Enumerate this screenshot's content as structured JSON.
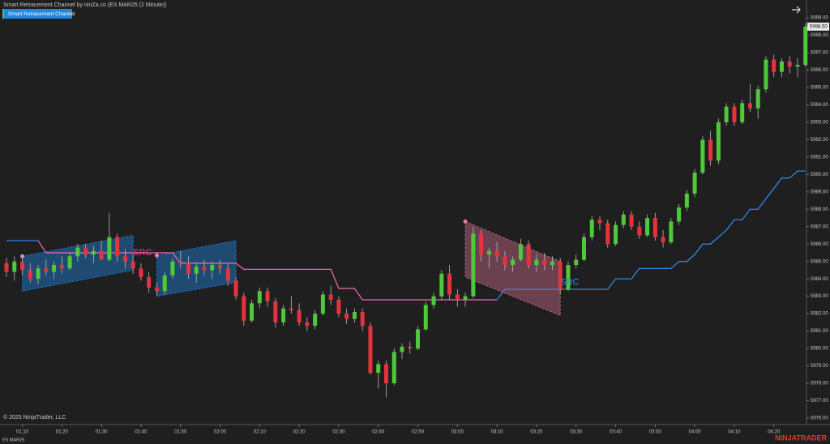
{
  "chart_data": {
    "type": "candlestick",
    "title": "Smart Retracement Channel by ninZa.co (ES MAR25 (2 Minute))",
    "indicator": "Smart Retracement Channel",
    "copyright": "© 2025 NinjaTrader, LLC",
    "instrument": "ES MAR25",
    "brand": "NINJATRADER",
    "up_color": "#4fc83a",
    "down_color": "#e5333d",
    "wick_color": "#b8b8b8",
    "ylim": [
      5975.72,
      5999.47
    ],
    "yticks": [
      {
        "value": 5976,
        "label": "5976.00"
      },
      {
        "value": 5977,
        "label": "5977.00"
      },
      {
        "value": 5978,
        "label": "5978.00"
      },
      {
        "value": 5979,
        "label": "5979.00"
      },
      {
        "value": 5980,
        "label": "5980.00"
      },
      {
        "value": 5981,
        "label": "5981.00"
      },
      {
        "value": 5982,
        "label": "5982.00"
      },
      {
        "value": 5983,
        "label": "5983.00"
      },
      {
        "value": 5984,
        "label": "5984.00"
      },
      {
        "value": 5985,
        "label": "5985.00"
      },
      {
        "value": 5986,
        "label": "5986.00"
      },
      {
        "value": 5987,
        "label": "5987.00"
      },
      {
        "value": 5988,
        "label": "5988.00"
      },
      {
        "value": 5989,
        "label": "5989.00"
      },
      {
        "value": 5990,
        "label": "5990.00"
      },
      {
        "value": 5991,
        "label": "5991.00"
      },
      {
        "value": 5992,
        "label": "5992.00"
      },
      {
        "value": 5993,
        "label": "5993.00"
      },
      {
        "value": 5994,
        "label": "5994.00"
      },
      {
        "value": 5995,
        "label": "5995.00"
      },
      {
        "value": 5996,
        "label": "5996.00"
      },
      {
        "value": 5997,
        "label": "5997.00"
      },
      {
        "value": 5998,
        "label": "5998.00"
      },
      {
        "value": 5999,
        "label": "5999.00"
      }
    ],
    "last_price": {
      "value": 5998.5,
      "label": "5998.50"
    },
    "categories": [
      null,
      null,
      "01:10",
      null,
      null,
      null,
      null,
      "01:20",
      null,
      null,
      null,
      null,
      "01:30",
      null,
      null,
      null,
      null,
      "01:40",
      null,
      null,
      null,
      null,
      "01:50",
      null,
      null,
      null,
      null,
      "02:00",
      null,
      null,
      null,
      null,
      "02:10",
      null,
      null,
      null,
      null,
      "02:20",
      null,
      null,
      null,
      null,
      "02:30",
      null,
      null,
      null,
      null,
      "02:40",
      null,
      null,
      null,
      null,
      "02:50",
      null,
      null,
      null,
      null,
      "03:00",
      null,
      null,
      null,
      null,
      "03:10",
      null,
      null,
      null,
      null,
      "03:20",
      null,
      null,
      null,
      null,
      "03:30",
      null,
      null,
      null,
      null,
      "03:40",
      null,
      null,
      null,
      null,
      "03:50",
      null,
      null,
      null,
      null,
      "04:00",
      null,
      null,
      null,
      null,
      "04:10",
      null,
      null,
      null,
      null,
      "04:20",
      null,
      null,
      null,
      null
    ],
    "candles": [
      [
        5984.9,
        5985.2,
        5984.1,
        5984.4
      ],
      [
        5984.4,
        5985.3,
        5983.9,
        5985.0
      ],
      [
        5985.0,
        5985.4,
        5984.2,
        5984.5
      ],
      [
        5984.5,
        5984.9,
        5983.8,
        5984.0
      ],
      [
        5984.0,
        5984.8,
        5983.7,
        5984.6
      ],
      [
        5984.6,
        5985.1,
        5984.2,
        5984.4
      ],
      [
        5984.4,
        5985.0,
        5984.0,
        5984.8
      ],
      [
        5984.8,
        5985.3,
        5984.3,
        5984.6
      ],
      [
        5984.6,
        5985.5,
        5984.5,
        5985.3
      ],
      [
        5985.3,
        5986.0,
        5985.0,
        5985.8
      ],
      [
        5985.8,
        5986.0,
        5985.2,
        5985.4
      ],
      [
        5985.4,
        5985.9,
        5984.9,
        5985.6
      ],
      [
        5985.6,
        5986.2,
        5985.2,
        5985.1
      ],
      [
        5985.1,
        5987.8,
        5985.0,
        5986.4
      ],
      [
        5986.4,
        5986.6,
        5985.0,
        5985.3
      ],
      [
        5985.3,
        5985.7,
        5984.6,
        5985.0
      ],
      [
        5985.0,
        5985.4,
        5984.3,
        5984.6
      ],
      [
        5984.6,
        5984.9,
        5983.9,
        5984.1
      ],
      [
        5984.1,
        5984.4,
        5983.2,
        5983.5
      ],
      [
        5983.5,
        5983.8,
        5983.0,
        5983.3
      ],
      [
        5983.3,
        5984.4,
        5983.1,
        5984.2
      ],
      [
        5984.2,
        5985.2,
        5984.0,
        5985.0
      ],
      [
        5985.0,
        5985.6,
        5984.6,
        5984.9
      ],
      [
        5984.9,
        5985.3,
        5984.0,
        5984.3
      ],
      [
        5984.3,
        5984.9,
        5983.8,
        5984.7
      ],
      [
        5984.7,
        5985.1,
        5984.2,
        5984.5
      ],
      [
        5984.5,
        5985.0,
        5984.0,
        5984.8
      ],
      [
        5984.8,
        5985.1,
        5984.3,
        5984.6
      ],
      [
        5984.6,
        5984.9,
        5983.6,
        5983.9
      ],
      [
        5983.9,
        5984.1,
        5982.8,
        5983.0
      ],
      [
        5983.0,
        5983.2,
        5981.3,
        5981.6
      ],
      [
        5981.6,
        5982.8,
        5981.5,
        5982.6
      ],
      [
        5982.6,
        5983.5,
        5982.3,
        5983.3
      ],
      [
        5983.3,
        5983.5,
        5982.4,
        5982.7
      ],
      [
        5982.7,
        5982.9,
        5981.2,
        5981.5
      ],
      [
        5981.5,
        5982.5,
        5981.3,
        5982.3
      ],
      [
        5982.3,
        5983.0,
        5982.0,
        5982.2
      ],
      [
        5982.2,
        5982.6,
        5981.3,
        5981.5
      ],
      [
        5981.5,
        5981.8,
        5981.0,
        5981.3
      ],
      [
        5981.3,
        5982.2,
        5981.1,
        5982.0
      ],
      [
        5982.0,
        5983.3,
        5981.9,
        5983.1
      ],
      [
        5983.1,
        5983.6,
        5982.5,
        5982.8
      ],
      [
        5982.8,
        5983.0,
        5981.8,
        5982.0
      ],
      [
        5982.0,
        5982.3,
        5981.4,
        5981.7
      ],
      [
        5981.7,
        5982.3,
        5981.5,
        5982.1
      ],
      [
        5982.1,
        5982.3,
        5981.0,
        5981.3
      ],
      [
        5981.3,
        5981.5,
        5978.5,
        5978.6
      ],
      [
        5978.6,
        5979.3,
        5977.7,
        5979.1
      ],
      [
        5979.1,
        5979.3,
        5977.2,
        5978.0
      ],
      [
        5978.0,
        5980.0,
        5977.9,
        5979.8
      ],
      [
        5979.8,
        5980.3,
        5979.4,
        5980.1
      ],
      [
        5980.1,
        5980.4,
        5979.7,
        5980.0
      ],
      [
        5980.0,
        5981.3,
        5979.9,
        5981.1
      ],
      [
        5981.1,
        5982.7,
        5981.0,
        5982.5
      ],
      [
        5982.5,
        5983.2,
        5982.3,
        5983.0
      ],
      [
        5983.0,
        5984.5,
        5982.8,
        5984.3
      ],
      [
        5984.3,
        5984.8,
        5982.8,
        5983.1
      ],
      [
        5983.1,
        5983.4,
        5982.4,
        5982.8
      ],
      [
        5982.8,
        5983.2,
        5982.4,
        5983.0
      ],
      [
        5983.0,
        5987.0,
        5982.9,
        5986.6
      ],
      [
        5986.6,
        5986.8,
        5985.0,
        5985.4
      ],
      [
        5985.4,
        5985.8,
        5984.6,
        5985.6
      ],
      [
        5985.6,
        5986.1,
        5985.0,
        5985.3
      ],
      [
        5985.3,
        5985.6,
        5984.5,
        5984.8
      ],
      [
        5984.8,
        5985.3,
        5984.4,
        5985.1
      ],
      [
        5985.1,
        5986.3,
        5985.0,
        5986.0
      ],
      [
        5986.0,
        5986.2,
        5984.6,
        5984.8
      ],
      [
        5984.8,
        5985.4,
        5984.4,
        5985.1
      ],
      [
        5985.1,
        5985.5,
        5984.5,
        5984.8
      ],
      [
        5984.8,
        5985.3,
        5984.5,
        5985.0
      ],
      [
        5985.0,
        5985.2,
        5983.1,
        5983.4
      ],
      [
        5983.4,
        5985.0,
        5983.3,
        5984.8
      ],
      [
        5984.8,
        5985.4,
        5984.6,
        5985.1
      ],
      [
        5985.1,
        5986.6,
        5985.0,
        5986.4
      ],
      [
        5986.4,
        5987.6,
        5986.2,
        5987.4
      ],
      [
        5987.4,
        5987.6,
        5986.8,
        5987.2
      ],
      [
        5987.2,
        5987.4,
        5985.8,
        5986.0
      ],
      [
        5986.0,
        5987.3,
        5985.9,
        5987.1
      ],
      [
        5987.1,
        5987.9,
        5986.9,
        5987.7
      ],
      [
        5987.7,
        5987.9,
        5986.8,
        5987.0
      ],
      [
        5987.0,
        5987.3,
        5986.3,
        5986.5
      ],
      [
        5986.5,
        5987.7,
        5986.4,
        5987.5
      ],
      [
        5987.5,
        5987.8,
        5986.2,
        5986.4
      ],
      [
        5986.4,
        5986.8,
        5985.8,
        5986.1
      ],
      [
        5986.1,
        5987.5,
        5986.0,
        5987.3
      ],
      [
        5987.3,
        5988.3,
        5987.1,
        5988.1
      ],
      [
        5988.1,
        5989.1,
        5987.9,
        5988.9
      ],
      [
        5988.9,
        5990.3,
        5988.7,
        5990.1
      ],
      [
        5990.1,
        5992.2,
        5990.0,
        5992.0
      ],
      [
        5992.0,
        5992.5,
        5990.5,
        5990.8
      ],
      [
        5990.8,
        5993.2,
        5990.6,
        5993.0
      ],
      [
        5993.0,
        5994.1,
        5992.8,
        5993.9
      ],
      [
        5993.9,
        5994.1,
        5992.8,
        5993.0
      ],
      [
        5993.0,
        5994.3,
        5992.9,
        5994.1
      ],
      [
        5994.1,
        5995.2,
        5993.6,
        5993.8
      ],
      [
        5993.8,
        5995.1,
        5993.2,
        5994.9
      ],
      [
        5994.9,
        5996.8,
        5994.7,
        5996.6
      ],
      [
        5996.6,
        5996.9,
        5995.6,
        5995.9
      ],
      [
        5995.9,
        5996.7,
        5995.6,
        5996.5
      ],
      [
        5996.5,
        5996.8,
        5995.8,
        5996.2
      ],
      [
        5996.2,
        5996.7,
        5995.6,
        5996.3
      ],
      [
        5996.3,
        5998.7,
        5996.2,
        5998.5
      ]
    ],
    "trail_up_color": "#2f8fff",
    "trail_down_color": "#f06ab0",
    "trail_up": [
      5986.2,
      5986.2,
      5986.2,
      5986.2,
      5986.2,
      null,
      null,
      null,
      null,
      null,
      null,
      null,
      null,
      null,
      null,
      null,
      null,
      null,
      null,
      null,
      null,
      null,
      null,
      null,
      null,
      null,
      null,
      null,
      null,
      null,
      null,
      null,
      null,
      null,
      null,
      null,
      null,
      null,
      null,
      null,
      null,
      null,
      null,
      null,
      null,
      null,
      null,
      null,
      null,
      null,
      null,
      null,
      null,
      null,
      null,
      null,
      null,
      null,
      null,
      null,
      null,
      null,
      5982.8,
      5983.4,
      5983.4,
      5983.4,
      5983.4,
      5983.4,
      5983.4,
      5983.4,
      5983.4,
      5983.4,
      5983.4,
      5983.4,
      5983.4,
      5983.4,
      5983.4,
      5984.0,
      5984.0,
      5984.0,
      5984.6,
      5984.6,
      5984.6,
      5984.6,
      5984.6,
      5985.0,
      5985.0,
      5985.4,
      5986.0,
      5986.0,
      5986.4,
      5986.8,
      5987.4,
      5987.4,
      5988.0,
      5988.0,
      5988.6,
      5989.2,
      5989.8,
      5989.8,
      5990.2,
      5990.2
    ],
    "trail_down": [
      null,
      null,
      null,
      null,
      5986.2,
      5985.5,
      5985.5,
      5985.5,
      5985.5,
      5985.5,
      5985.5,
      5985.5,
      5985.5,
      5985.5,
      5985.5,
      5985.5,
      5985.5,
      5985.5,
      5985.5,
      5985.5,
      5985.5,
      5985.5,
      5984.9,
      5984.9,
      5984.9,
      5984.9,
      5984.9,
      5984.9,
      5984.9,
      5984.9,
      5984.55,
      5984.55,
      5984.55,
      5984.55,
      5984.55,
      5984.55,
      5984.55,
      5984.55,
      5984.55,
      5984.55,
      5984.55,
      5984.55,
      5983.45,
      5983.45,
      5983.45,
      5982.8,
      5982.8,
      5982.8,
      5982.8,
      5982.8,
      5982.8,
      5982.8,
      5982.8,
      5982.8,
      5982.8,
      5982.8,
      5982.8,
      5982.8,
      5982.8,
      5982.8,
      5982.8,
      5982.8,
      5982.8,
      null,
      null,
      null,
      null,
      null,
      null,
      null,
      null,
      null,
      null,
      null,
      null,
      null,
      null,
      null,
      null,
      null,
      null,
      null,
      null,
      null,
      null,
      null,
      null,
      null,
      null,
      null,
      null,
      null,
      null,
      null,
      null,
      null,
      null,
      null,
      null,
      null,
      null,
      null
    ],
    "channels": [
      {
        "from": 2,
        "to": 16,
        "upper": [
          5985.3,
          5986.5
        ],
        "lower": [
          5983.3,
          5984.5
        ],
        "color": "#1e7fd8"
      },
      {
        "from": 19,
        "to": 29,
        "upper": [
          5985.35,
          5986.2
        ],
        "lower": [
          5983.0,
          5983.8
        ],
        "color": "#1e7fd8"
      },
      {
        "from": 58,
        "to": 70,
        "upper": [
          5987.3,
          5985.0
        ],
        "lower": [
          5984.1,
          5981.9
        ],
        "color": "#c86a8a"
      }
    ],
    "annotations": [
      {
        "text": "SRC",
        "color": "#e8479a"
      },
      {
        "text": "SRC",
        "color": "#2f8fff"
      }
    ]
  }
}
